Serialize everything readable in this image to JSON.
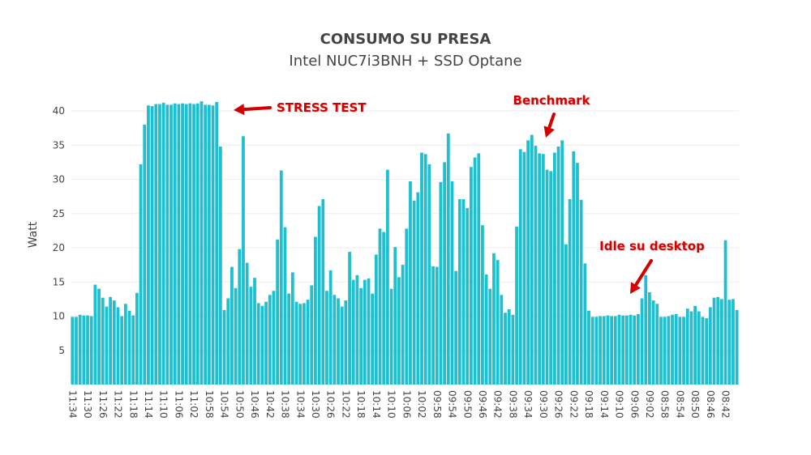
{
  "chart_data": {
    "type": "bar",
    "title": "CONSUMO SU PRESA",
    "subtitle": "Intel NUC7i3BNH + SSD Optane",
    "xlabel": "",
    "ylabel": "Watt",
    "ylim": [
      0,
      42
    ],
    "yticks": [
      5,
      10,
      15,
      20,
      25,
      30,
      35,
      40
    ],
    "grid": true,
    "bar_color": "#1fbfcf",
    "annotation_color": "#d40000",
    "categories": [
      "11:34",
      "11:33",
      "11:32",
      "11:31",
      "11:30",
      "11:29",
      "11:28",
      "11:27",
      "11:26",
      "11:25",
      "11:24",
      "11:23",
      "11:22",
      "11:21",
      "11:20",
      "11:19",
      "11:18",
      "11:17",
      "11:16",
      "11:15",
      "11:14",
      "11:13",
      "11:12",
      "11:11",
      "11:10",
      "11:09",
      "11:08",
      "11:07",
      "11:06",
      "11:05",
      "11:04",
      "11:03",
      "11:02",
      "11:01",
      "11:00",
      "10:59",
      "10:58",
      "10:57",
      "10:56",
      "10:55",
      "10:54",
      "10:53",
      "10:52",
      "10:51",
      "10:50",
      "10:49",
      "10:48",
      "10:47",
      "10:46",
      "10:45",
      "10:44",
      "10:43",
      "10:42",
      "10:41",
      "10:40",
      "10:39",
      "10:38",
      "10:37",
      "10:36",
      "10:35",
      "10:34",
      "10:33",
      "10:32",
      "10:31",
      "10:30",
      "10:29",
      "10:28",
      "10:27",
      "10:26",
      "10:25",
      "10:24",
      "10:23",
      "10:22",
      "10:21",
      "10:20",
      "10:19",
      "10:18",
      "10:17",
      "10:16",
      "10:15",
      "10:14",
      "10:13",
      "10:12",
      "10:11",
      "10:10",
      "10:09",
      "10:08",
      "10:07",
      "10:06",
      "10:05",
      "10:04",
      "10:03",
      "10:02",
      "10:01",
      "10:00",
      "09:59",
      "09:58",
      "09:57",
      "09:56",
      "09:55",
      "09:54",
      "09:53",
      "09:52",
      "09:51",
      "09:50",
      "09:49",
      "09:48",
      "09:47",
      "09:46",
      "09:45",
      "09:44",
      "09:43",
      "09:42",
      "09:41",
      "09:40",
      "09:39",
      "09:38",
      "09:37",
      "09:36",
      "09:35",
      "09:34",
      "09:33",
      "09:32",
      "09:31",
      "09:30",
      "09:29",
      "09:28",
      "09:27",
      "09:26",
      "09:25",
      "09:24",
      "09:23",
      "09:22",
      "09:21",
      "09:20",
      "09:19",
      "09:18",
      "09:17",
      "09:16",
      "09:15",
      "09:14",
      "09:13",
      "09:12",
      "09:11",
      "09:10",
      "09:09",
      "09:08",
      "09:07",
      "09:06",
      "09:05",
      "09:04",
      "09:03",
      "09:02",
      "09:01",
      "09:00",
      "08:59",
      "08:58",
      "08:57",
      "08:56",
      "08:55",
      "08:54",
      "08:53",
      "08:52",
      "08:51",
      "08:50",
      "08:49",
      "08:48",
      "08:47",
      "08:46",
      "08:45",
      "08:44",
      "08:43",
      "08:42",
      "08:41",
      "08:40",
      "08:39"
    ],
    "values": [
      9.9,
      9.9,
      10.2,
      10.1,
      10.1,
      10.0,
      14.6,
      14.0,
      12.7,
      11.4,
      12.8,
      12.3,
      11.3,
      10.0,
      11.8,
      10.8,
      10.1,
      13.4,
      32.2,
      38.0,
      40.8,
      40.7,
      41.0,
      41.0,
      41.2,
      40.9,
      40.9,
      41.1,
      41.0,
      41.1,
      41.0,
      41.1,
      41.0,
      41.1,
      41.4,
      40.9,
      40.9,
      40.8,
      41.3,
      34.8,
      10.9,
      12.6,
      17.2,
      14.1,
      19.8,
      36.3,
      17.8,
      14.3,
      15.6,
      11.9,
      11.5,
      12.1,
      13.1,
      13.7,
      21.2,
      31.3,
      23.0,
      13.3,
      16.4,
      12.1,
      11.8,
      11.9,
      12.4,
      14.5,
      21.6,
      26.1,
      27.1,
      13.7,
      16.7,
      13.1,
      12.6,
      11.4,
      12.3,
      19.4,
      15.3,
      16.0,
      14.1,
      15.3,
      15.5,
      13.3,
      19.0,
      22.8,
      22.3,
      31.4,
      14.0,
      20.1,
      15.7,
      17.5,
      22.8,
      29.7,
      26.9,
      28.1,
      33.9,
      33.7,
      32.2,
      17.3,
      17.2,
      29.6,
      32.5,
      36.7,
      29.7,
      16.6,
      27.1,
      27.1,
      25.8,
      31.8,
      33.2,
      33.8,
      23.3,
      16.1,
      14.0,
      19.2,
      18.2,
      13.1,
      10.5,
      11.0,
      10.2,
      23.1,
      34.4,
      34.0,
      35.7,
      36.5,
      34.9,
      33.8,
      33.7,
      31.4,
      31.2,
      33.9,
      34.8,
      35.7,
      20.5,
      27.1,
      34.1,
      32.4,
      27.0,
      17.7,
      10.8,
      9.9,
      9.9,
      10.0,
      10.0,
      10.1,
      10.0,
      10.0,
      10.2,
      10.1,
      10.1,
      10.2,
      10.1,
      10.3,
      12.6,
      16.0,
      13.5,
      12.3,
      11.8,
      9.9,
      9.9,
      10.0,
      10.2,
      10.3,
      9.9,
      9.9,
      11.1,
      10.7,
      11.5,
      10.7,
      9.9,
      9.7,
      11.3,
      12.7,
      12.8,
      12.5,
      21.1,
      12.4,
      12.5,
      10.9
    ],
    "xtick_labels": [
      "11:34",
      "11:30",
      "11:26",
      "11:22",
      "11:18",
      "11:14",
      "11:10",
      "11:06",
      "11:02",
      "10:58",
      "10:54",
      "10:50",
      "10:46",
      "10:42",
      "10:38",
      "10:34",
      "10:30",
      "10:26",
      "10:22",
      "10:18",
      "10:14",
      "10:10",
      "10:06",
      "10:02",
      "09:58",
      "09:54",
      "09:50",
      "09:46",
      "09:42",
      "09:38",
      "09:34",
      "09:30",
      "09:26",
      "09:22",
      "09:18",
      "09:14",
      "09:10",
      "09:06",
      "09:02",
      "08:58",
      "08:54",
      "08:50",
      "08:46",
      "08:42"
    ],
    "annotations": [
      {
        "text": "STRESS TEST",
        "at": "10:56",
        "value": 41
      },
      {
        "text": "Benchmark",
        "at": "09:29",
        "value": 36
      },
      {
        "text": "Idle su desktop",
        "at": "09:08",
        "value": 12
      }
    ]
  }
}
